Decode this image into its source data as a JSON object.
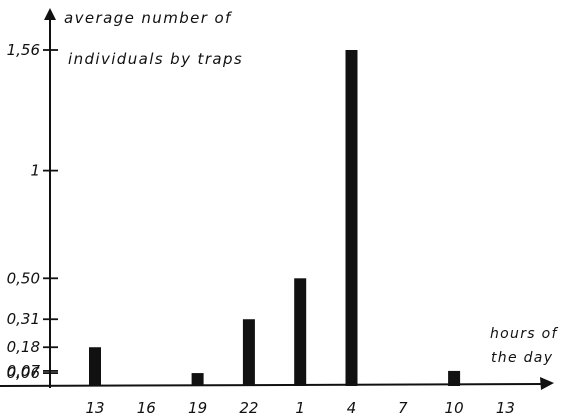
{
  "chart_data": {
    "type": "bar",
    "title_lines": [
      "average number of",
      "individuals by traps"
    ],
    "xlabel_lines": [
      "hours of",
      "the day"
    ],
    "categories": [
      "13",
      "16",
      "19",
      "22",
      "1",
      "4",
      "7",
      "10",
      "13"
    ],
    "values": [
      0.18,
      0,
      0.06,
      0.31,
      0.5,
      1.56,
      0,
      0.07,
      0
    ],
    "yticks": [
      {
        "value": 0.06,
        "label": "0,06"
      },
      {
        "value": 0.07,
        "label": "0,07"
      },
      {
        "value": 0.18,
        "label": "0,18"
      },
      {
        "value": 0.31,
        "label": "0,31"
      },
      {
        "value": 0.5,
        "label": "0,50"
      },
      {
        "value": 1,
        "label": "1"
      },
      {
        "value": 1.56,
        "label": "1,56"
      }
    ],
    "ylim": [
      0,
      1.56
    ],
    "grid": false,
    "bar_color": "#111111"
  }
}
